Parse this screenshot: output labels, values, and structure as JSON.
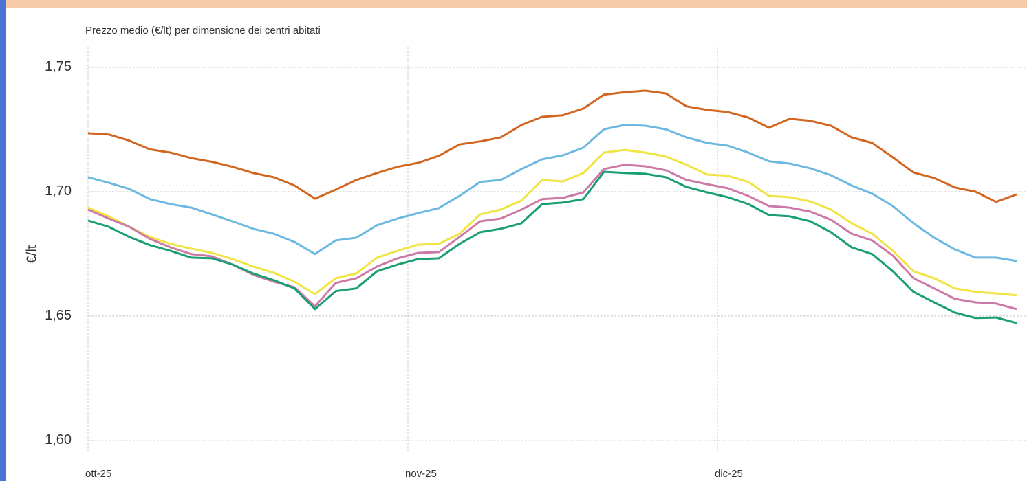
{
  "chart_data": {
    "type": "line",
    "title": "Prezzo medio (€/lt) per dimensione dei centri abitati",
    "y_label": "€/lt",
    "x": [
      0,
      2,
      4,
      6,
      8,
      10,
      12,
      14,
      16,
      18,
      20,
      22,
      24,
      26,
      28,
      30,
      32,
      34,
      36,
      38,
      40,
      42,
      44,
      46,
      48,
      50,
      52,
      54,
      56,
      58,
      60,
      62,
      64,
      66,
      68,
      70,
      72,
      74,
      76,
      78,
      80,
      82,
      84,
      86,
      88,
      90
    ],
    "xlim": [
      0,
      91
    ],
    "xticks": [
      {
        "value": 0,
        "label": "ott-25"
      },
      {
        "value": 31,
        "label": "nov-25"
      },
      {
        "value": 61,
        "label": "dic-25"
      }
    ],
    "ylim": [
      1.595,
      1.758
    ],
    "yticks": [
      {
        "value": 1.6,
        "label": "1,60"
      },
      {
        "value": 1.65,
        "label": "1,65"
      },
      {
        "value": 1.7,
        "label": "1,70"
      },
      {
        "value": 1.75,
        "label": "1,75"
      }
    ],
    "grid": true,
    "series": [
      {
        "color": "#d2651f",
        "values": [
          1.7235,
          1.723,
          1.7205,
          1.717,
          1.7157,
          1.7135,
          1.712,
          1.71,
          1.7075,
          1.7058,
          1.7025,
          1.6972,
          1.7008,
          1.7047,
          1.7075,
          1.71,
          1.7116,
          1.7144,
          1.719,
          1.7202,
          1.7218,
          1.7268,
          1.7301,
          1.7307,
          1.7334,
          1.739,
          1.74,
          1.7406,
          1.7395,
          1.7343,
          1.7329,
          1.732,
          1.7298,
          1.7257,
          1.7293,
          1.7285,
          1.7265,
          1.7218,
          1.7196,
          1.7138,
          1.7077,
          1.7055,
          1.7017,
          1.7,
          1.6959,
          1.6989
        ]
      },
      {
        "color": "#6cb8e0",
        "values": [
          1.7058,
          1.7036,
          1.7011,
          1.697,
          1.695,
          1.6936,
          1.6909,
          1.6881,
          1.6851,
          1.6831,
          1.6798,
          1.6749,
          1.6804,
          1.6815,
          1.6865,
          1.6892,
          1.6914,
          1.6934,
          1.6983,
          1.7039,
          1.7047,
          1.7091,
          1.713,
          1.7146,
          1.7177,
          1.7251,
          1.7268,
          1.7265,
          1.7251,
          1.7218,
          1.7196,
          1.7185,
          1.7157,
          1.7122,
          1.7113,
          1.7094,
          1.7066,
          1.7025,
          1.6992,
          1.6942,
          1.6873,
          1.6815,
          1.6768,
          1.6735,
          1.6735,
          1.6721
        ]
      },
      {
        "color": "#f0e442",
        "values": [
          1.6936,
          1.6901,
          1.6859,
          1.6818,
          1.679,
          1.6771,
          1.6754,
          1.6729,
          1.6699,
          1.6674,
          1.6638,
          1.6588,
          1.6652,
          1.6671,
          1.6735,
          1.6762,
          1.6787,
          1.679,
          1.6831,
          1.6909,
          1.6928,
          1.6964,
          1.7047,
          1.7041,
          1.7075,
          1.7157,
          1.7168,
          1.7157,
          1.7141,
          1.7108,
          1.7069,
          1.7064,
          1.7039,
          1.6983,
          1.6978,
          1.6961,
          1.6928,
          1.6873,
          1.6831,
          1.6762,
          1.668,
          1.6652,
          1.6611,
          1.6597,
          1.6591,
          1.6583
        ]
      },
      {
        "color": "#cc79a7",
        "values": [
          1.6928,
          1.6892,
          1.6859,
          1.681,
          1.6776,
          1.6749,
          1.674,
          1.6707,
          1.6666,
          1.6638,
          1.6616,
          1.6539,
          1.6633,
          1.6652,
          1.6699,
          1.6732,
          1.6754,
          1.6757,
          1.6818,
          1.6881,
          1.6892,
          1.6928,
          1.697,
          1.6975,
          1.6997,
          1.7091,
          1.7108,
          1.7102,
          1.7086,
          1.7047,
          1.703,
          1.7014,
          1.6983,
          1.6942,
          1.6936,
          1.692,
          1.6887,
          1.6831,
          1.6804,
          1.6743,
          1.6652,
          1.6611,
          1.6569,
          1.6555,
          1.655,
          1.6528
        ]
      },
      {
        "color": "#1a9e73",
        "values": [
          1.6884,
          1.6859,
          1.6818,
          1.6785,
          1.6762,
          1.6735,
          1.6732,
          1.6707,
          1.6671,
          1.6644,
          1.6611,
          1.6528,
          1.66,
          1.6611,
          1.668,
          1.6707,
          1.6729,
          1.6732,
          1.679,
          1.6837,
          1.6851,
          1.6873,
          1.695,
          1.6956,
          1.697,
          1.708,
          1.7075,
          1.7072,
          1.7058,
          1.7019,
          1.6997,
          1.6978,
          1.695,
          1.6906,
          1.6901,
          1.6881,
          1.6837,
          1.6776,
          1.6749,
          1.668,
          1.6597,
          1.6555,
          1.6514,
          1.6492,
          1.6494,
          1.6472
        ]
      }
    ]
  }
}
